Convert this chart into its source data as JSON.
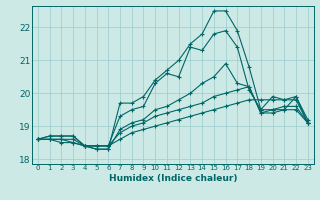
{
  "xlabel": "Humidex (Indice chaleur)",
  "background_color": "#cce9e5",
  "grid_color": "#99cccc",
  "line_color": "#006666",
  "xlim": [
    -0.5,
    23.5
  ],
  "ylim": [
    17.85,
    22.65
  ],
  "xticks": [
    0,
    1,
    2,
    3,
    4,
    5,
    6,
    7,
    8,
    9,
    10,
    11,
    12,
    13,
    14,
    15,
    16,
    17,
    18,
    19,
    20,
    21,
    22,
    23
  ],
  "yticks": [
    18,
    19,
    20,
    21,
    22
  ],
  "series": [
    [
      18.6,
      18.6,
      18.6,
      18.6,
      18.4,
      18.4,
      18.4,
      18.6,
      18.8,
      18.9,
      19.0,
      19.1,
      19.2,
      19.3,
      19.4,
      19.5,
      19.6,
      19.7,
      19.8,
      19.8,
      19.8,
      19.8,
      19.8,
      19.1
    ],
    [
      18.6,
      18.6,
      18.6,
      18.5,
      18.4,
      18.4,
      18.4,
      18.8,
      19.0,
      19.1,
      19.3,
      19.4,
      19.5,
      19.6,
      19.7,
      19.9,
      20.0,
      20.1,
      20.2,
      19.4,
      19.4,
      19.5,
      19.5,
      19.1
    ],
    [
      18.6,
      18.6,
      18.5,
      18.5,
      18.4,
      18.3,
      18.3,
      18.9,
      19.1,
      19.2,
      19.5,
      19.6,
      19.8,
      20.0,
      20.3,
      20.5,
      20.9,
      20.3,
      20.2,
      19.4,
      19.5,
      19.6,
      19.6,
      19.1
    ],
    [
      18.6,
      18.7,
      18.7,
      18.7,
      18.4,
      18.4,
      18.4,
      19.3,
      19.5,
      19.6,
      20.3,
      20.6,
      20.5,
      21.4,
      21.3,
      21.8,
      21.9,
      21.4,
      20.1,
      19.5,
      19.5,
      19.5,
      19.9,
      19.2
    ],
    [
      18.6,
      18.7,
      18.7,
      18.7,
      18.4,
      18.3,
      18.3,
      19.7,
      19.7,
      19.9,
      20.4,
      20.7,
      21.0,
      21.5,
      21.8,
      22.5,
      22.5,
      21.9,
      20.8,
      19.5,
      19.9,
      19.8,
      19.9,
      19.1
    ]
  ],
  "marker": "+",
  "markersize": 3,
  "linewidth": 0.8,
  "markeredgewidth": 0.8,
  "xlabel_fontsize": 6.5,
  "xtick_fontsize": 5.0,
  "ytick_fontsize": 6.5
}
